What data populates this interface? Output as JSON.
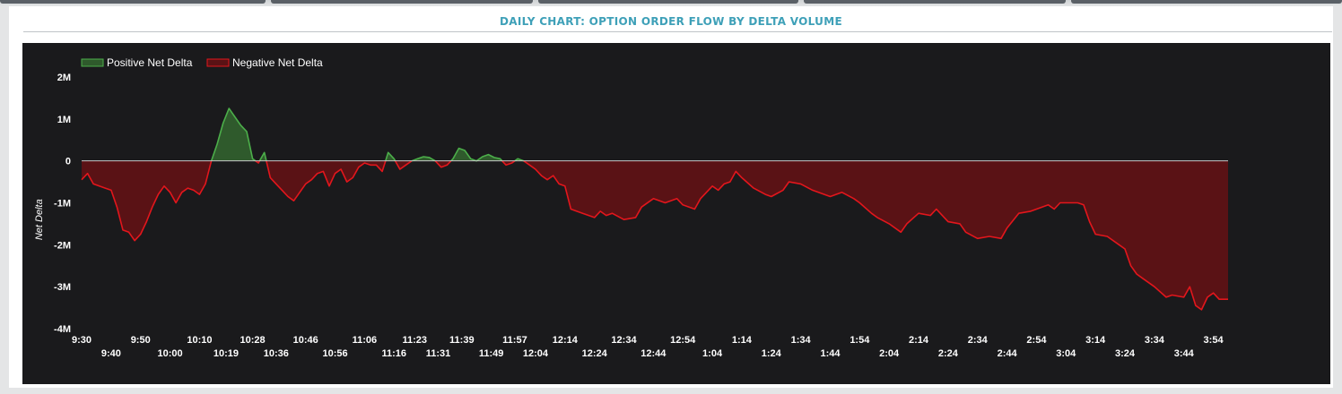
{
  "title": "DAILY CHART: OPTION ORDER FLOW BY DELTA VOLUME",
  "colors": {
    "positive_fill": "#2f5a2c",
    "positive_line": "#4cae4a",
    "negative_fill": "#5a1215",
    "negative_line": "#e3161c",
    "zero_line": "#c8c8c8",
    "background": "#1a1a1c",
    "title": "#3ea0b8"
  },
  "chart_data": {
    "type": "area",
    "ylabel": "Net Delta",
    "ylim": [
      -4000000,
      2000000
    ],
    "y_ticks": [
      2000000,
      1000000,
      0,
      -1000000,
      -2000000,
      -3000000,
      -4000000
    ],
    "y_tick_labels": [
      "2M",
      "1M",
      "0",
      "-1M",
      "-2M",
      "-3M",
      "-4M"
    ],
    "x_tick_labels_row1": [
      "9:30",
      "9:50",
      "10:10",
      "10:28",
      "10:46",
      "11:06",
      "11:23",
      "11:39",
      "11:57",
      "12:14",
      "12:34",
      "12:54",
      "1:14",
      "1:34",
      "1:54",
      "2:14",
      "2:34",
      "2:54",
      "3:14",
      "3:34",
      "3:54"
    ],
    "x_tick_labels_row2": [
      "9:40",
      "10:00",
      "10:19",
      "10:36",
      "10:56",
      "11:16",
      "11:31",
      "11:49",
      "12:04",
      "12:24",
      "12:44",
      "1:04",
      "1:24",
      "1:44",
      "2:04",
      "2:24",
      "2:44",
      "3:04",
      "3:24",
      "3:44"
    ],
    "legend": [
      {
        "name": "Positive Net Delta",
        "color": "#2f5a2c",
        "border": "#4cae4a"
      },
      {
        "name": "Negative Net Delta",
        "color": "#5a1215",
        "border": "#e3161c"
      }
    ],
    "legend_placement": "top-left",
    "x_start": "9:30",
    "x_end": "3:59",
    "series": [
      {
        "name": "Net Delta",
        "points": [
          [
            "9:30",
            -450000
          ],
          [
            "9:32",
            -300000
          ],
          [
            "9:34",
            -550000
          ],
          [
            "9:36",
            -600000
          ],
          [
            "9:38",
            -650000
          ],
          [
            "9:40",
            -700000
          ],
          [
            "9:42",
            -1100000
          ],
          [
            "9:44",
            -1650000
          ],
          [
            "9:46",
            -1700000
          ],
          [
            "9:48",
            -1900000
          ],
          [
            "9:50",
            -1750000
          ],
          [
            "9:52",
            -1450000
          ],
          [
            "9:54",
            -1100000
          ],
          [
            "9:56",
            -800000
          ],
          [
            "9:58",
            -600000
          ],
          [
            "10:00",
            -750000
          ],
          [
            "10:02",
            -1000000
          ],
          [
            "10:04",
            -750000
          ],
          [
            "10:06",
            -650000
          ],
          [
            "10:08",
            -700000
          ],
          [
            "10:10",
            -800000
          ],
          [
            "10:12",
            -550000
          ],
          [
            "10:14",
            0
          ],
          [
            "10:16",
            400000
          ],
          [
            "10:18",
            900000
          ],
          [
            "10:20",
            1250000
          ],
          [
            "10:22",
            1050000
          ],
          [
            "10:24",
            850000
          ],
          [
            "10:26",
            700000
          ],
          [
            "10:28",
            50000
          ],
          [
            "10:30",
            -50000
          ],
          [
            "10:32",
            200000
          ],
          [
            "10:34",
            -400000
          ],
          [
            "10:36",
            -550000
          ],
          [
            "10:38",
            -700000
          ],
          [
            "10:40",
            -850000
          ],
          [
            "10:42",
            -950000
          ],
          [
            "10:44",
            -750000
          ],
          [
            "10:46",
            -550000
          ],
          [
            "10:48",
            -450000
          ],
          [
            "10:50",
            -300000
          ],
          [
            "10:52",
            -250000
          ],
          [
            "10:54",
            -600000
          ],
          [
            "10:56",
            -300000
          ],
          [
            "10:58",
            -200000
          ],
          [
            "11:00",
            -500000
          ],
          [
            "11:02",
            -400000
          ],
          [
            "11:04",
            -150000
          ],
          [
            "11:06",
            -50000
          ],
          [
            "11:08",
            -100000
          ],
          [
            "11:10",
            -100000
          ],
          [
            "11:12",
            -250000
          ],
          [
            "11:14",
            200000
          ],
          [
            "11:16",
            50000
          ],
          [
            "11:18",
            -200000
          ],
          [
            "11:20",
            -100000
          ],
          [
            "11:22",
            0
          ],
          [
            "11:24",
            50000
          ],
          [
            "11:26",
            100000
          ],
          [
            "11:28",
            80000
          ],
          [
            "11:30",
            0
          ],
          [
            "11:32",
            -150000
          ],
          [
            "11:34",
            -100000
          ],
          [
            "11:36",
            50000
          ],
          [
            "11:38",
            300000
          ],
          [
            "11:40",
            250000
          ],
          [
            "11:42",
            50000
          ],
          [
            "11:44",
            0
          ],
          [
            "11:46",
            100000
          ],
          [
            "11:48",
            150000
          ],
          [
            "11:50",
            80000
          ],
          [
            "11:52",
            50000
          ],
          [
            "11:54",
            -100000
          ],
          [
            "11:56",
            -50000
          ],
          [
            "11:58",
            50000
          ],
          [
            "12:00",
            0
          ],
          [
            "12:02",
            -100000
          ],
          [
            "12:04",
            -200000
          ],
          [
            "12:06",
            -350000
          ],
          [
            "12:08",
            -450000
          ],
          [
            "12:10",
            -350000
          ],
          [
            "12:12",
            -550000
          ],
          [
            "12:14",
            -600000
          ],
          [
            "12:16",
            -1150000
          ],
          [
            "12:18",
            -1200000
          ],
          [
            "12:20",
            -1250000
          ],
          [
            "12:24",
            -1350000
          ],
          [
            "12:26",
            -1200000
          ],
          [
            "12:28",
            -1300000
          ],
          [
            "12:30",
            -1250000
          ],
          [
            "12:34",
            -1400000
          ],
          [
            "12:38",
            -1350000
          ],
          [
            "12:40",
            -1100000
          ],
          [
            "12:44",
            -900000
          ],
          [
            "12:48",
            -1000000
          ],
          [
            "12:52",
            -900000
          ],
          [
            "12:54",
            -1050000
          ],
          [
            "12:58",
            -1150000
          ],
          [
            "1:00",
            -900000
          ],
          [
            "1:04",
            -600000
          ],
          [
            "1:06",
            -700000
          ],
          [
            "1:08",
            -550000
          ],
          [
            "1:10",
            -500000
          ],
          [
            "1:12",
            -250000
          ],
          [
            "1:14",
            -400000
          ],
          [
            "1:18",
            -650000
          ],
          [
            "1:22",
            -800000
          ],
          [
            "1:24",
            -850000
          ],
          [
            "1:28",
            -700000
          ],
          [
            "1:30",
            -500000
          ],
          [
            "1:34",
            -550000
          ],
          [
            "1:38",
            -700000
          ],
          [
            "1:42",
            -800000
          ],
          [
            "1:44",
            -850000
          ],
          [
            "1:48",
            -750000
          ],
          [
            "1:52",
            -900000
          ],
          [
            "1:54",
            -1000000
          ],
          [
            "1:58",
            -1250000
          ],
          [
            "2:00",
            -1350000
          ],
          [
            "2:04",
            -1500000
          ],
          [
            "2:08",
            -1700000
          ],
          [
            "2:10",
            -1500000
          ],
          [
            "2:14",
            -1250000
          ],
          [
            "2:18",
            -1300000
          ],
          [
            "2:20",
            -1150000
          ],
          [
            "2:24",
            -1450000
          ],
          [
            "2:28",
            -1500000
          ],
          [
            "2:30",
            -1700000
          ],
          [
            "2:34",
            -1850000
          ],
          [
            "2:38",
            -1800000
          ],
          [
            "2:42",
            -1850000
          ],
          [
            "2:44",
            -1600000
          ],
          [
            "2:48",
            -1250000
          ],
          [
            "2:52",
            -1200000
          ],
          [
            "2:54",
            -1150000
          ],
          [
            "2:58",
            -1050000
          ],
          [
            "3:00",
            -1150000
          ],
          [
            "3:02",
            -1000000
          ],
          [
            "3:04",
            -1000000
          ],
          [
            "3:08",
            -1000000
          ],
          [
            "3:10",
            -1050000
          ],
          [
            "3:12",
            -1450000
          ],
          [
            "3:14",
            -1750000
          ],
          [
            "3:18",
            -1800000
          ],
          [
            "3:22",
            -2000000
          ],
          [
            "3:24",
            -2100000
          ],
          [
            "3:26",
            -2500000
          ],
          [
            "3:28",
            -2700000
          ],
          [
            "3:30",
            -2800000
          ],
          [
            "3:34",
            -3000000
          ],
          [
            "3:38",
            -3250000
          ],
          [
            "3:40",
            -3200000
          ],
          [
            "3:44",
            -3250000
          ],
          [
            "3:46",
            -3000000
          ],
          [
            "3:48",
            -3450000
          ],
          [
            "3:50",
            -3550000
          ],
          [
            "3:52",
            -3250000
          ],
          [
            "3:54",
            -3150000
          ],
          [
            "3:56",
            -3300000
          ],
          [
            "3:59",
            -3300000
          ]
        ]
      }
    ]
  }
}
